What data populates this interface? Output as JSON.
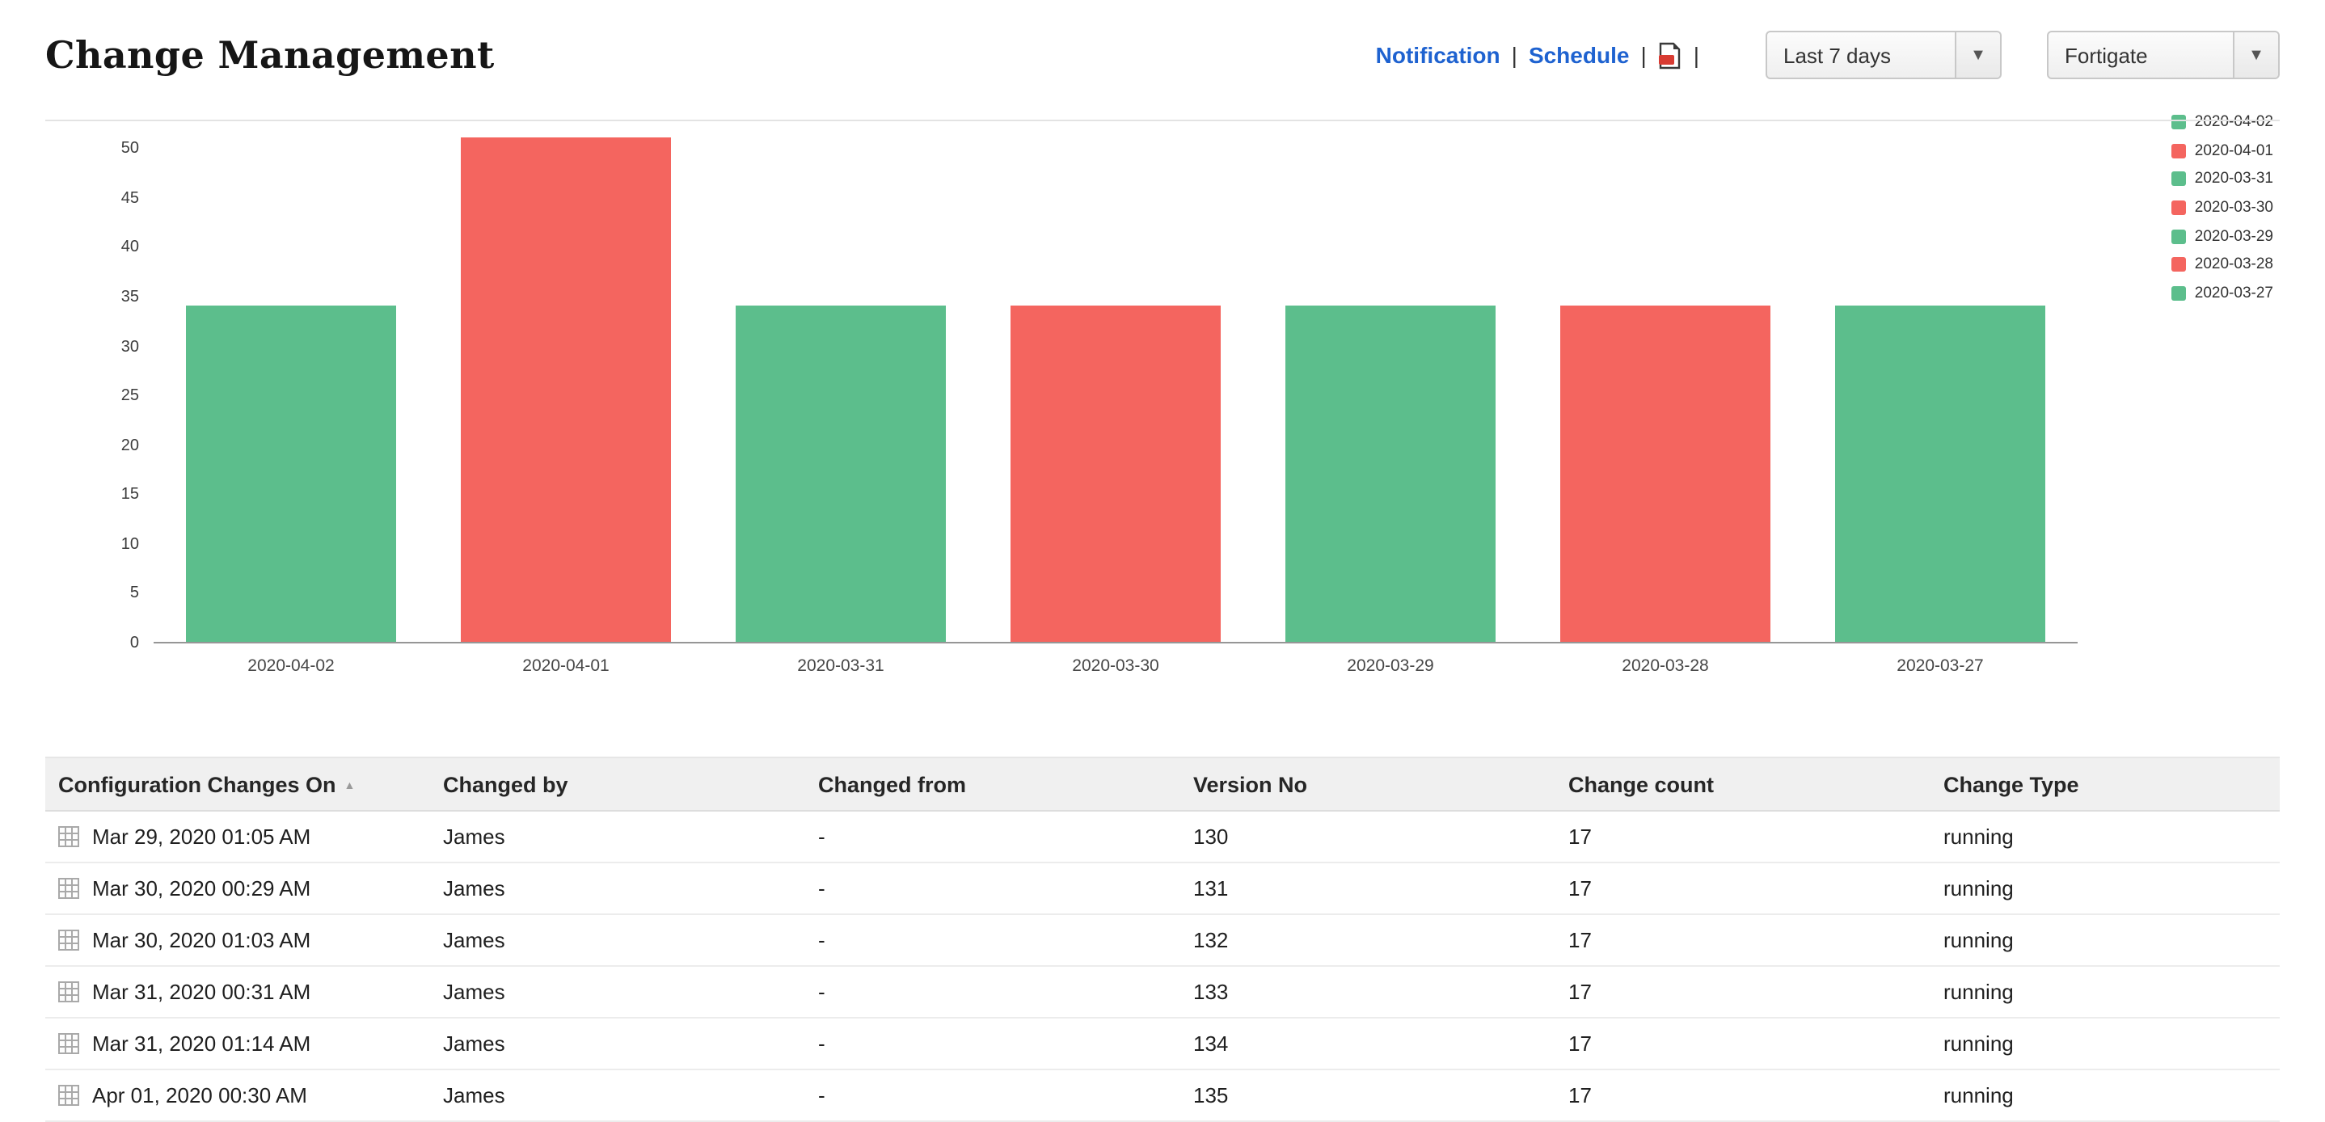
{
  "header": {
    "title": "Change Management",
    "links": [
      {
        "label": "Notification"
      },
      {
        "label": "Schedule"
      }
    ],
    "separator": "|",
    "range_select": {
      "value": "Last 7 days"
    },
    "device_select": {
      "value": "Fortigate"
    }
  },
  "icons": {
    "caret": "▼",
    "sort_ascending": "▲",
    "pdf": "pdf-export-icon",
    "row_grid": "config-grid-icon"
  },
  "colors": {
    "link": "#1E62D0",
    "bar_green": "#5CBE8C",
    "bar_red": "#F4655F",
    "table_header_bg": "#F0F0F0"
  },
  "chart_data": {
    "type": "bar",
    "title": "",
    "xlabel": "",
    "ylabel": "",
    "categories": [
      "2020-04-02",
      "2020-04-01",
      "2020-03-31",
      "2020-03-30",
      "2020-03-29",
      "2020-03-28",
      "2020-03-27"
    ],
    "values": [
      34,
      51,
      34,
      34,
      34,
      34,
      34
    ],
    "colors": [
      "#5CBE8C",
      "#F4655F",
      "#5CBE8C",
      "#F4655F",
      "#5CBE8C",
      "#F4655F",
      "#5CBE8C"
    ],
    "ylim": [
      0,
      53
    ],
    "yticks": [
      0,
      5,
      10,
      15,
      20,
      25,
      30,
      35,
      40,
      45,
      50
    ],
    "grid": false,
    "legend_position": "right",
    "legend": [
      "2020-04-02",
      "2020-04-01",
      "2020-03-31",
      "2020-03-30",
      "2020-03-29",
      "2020-03-28",
      "2020-03-27"
    ]
  },
  "table": {
    "columns": [
      "Configuration Changes On",
      "Changed by",
      "Changed from",
      "Version No",
      "Change count",
      "Change Type"
    ],
    "rows": [
      [
        "Mar 29, 2020 01:05 AM",
        "James",
        "-",
        "130",
        "17",
        "running"
      ],
      [
        "Mar 30, 2020 00:29 AM",
        "James",
        "-",
        "131",
        "17",
        "running"
      ],
      [
        "Mar 30, 2020 01:03 AM",
        "James",
        "-",
        "132",
        "17",
        "running"
      ],
      [
        "Mar 31, 2020 00:31 AM",
        "James",
        "-",
        "133",
        "17",
        "running"
      ],
      [
        "Mar 31, 2020 01:14 AM",
        "James",
        "-",
        "134",
        "17",
        "running"
      ],
      [
        "Apr 01, 2020 00:30 AM",
        "James",
        "-",
        "135",
        "17",
        "running"
      ]
    ]
  }
}
